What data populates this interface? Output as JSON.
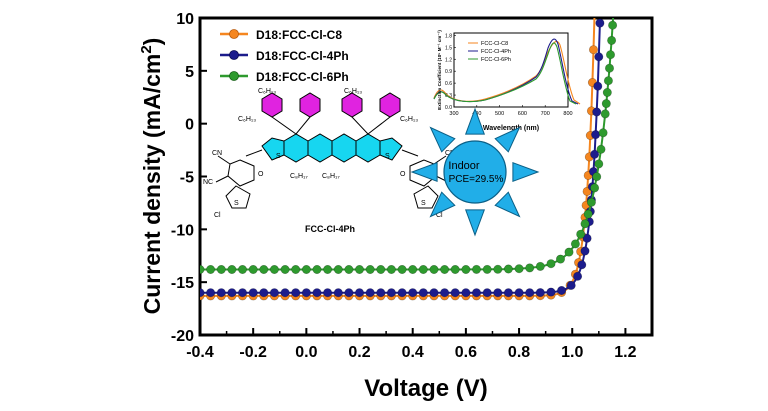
{
  "chart_data": {
    "type": "line",
    "xlabel": "Voltage (V)",
    "ylabel": "Current density (mA/cm",
    "ylabel_sup": "2",
    "ylabel_close": ")",
    "xlim": [
      -0.4,
      1.3
    ],
    "ylim": [
      -20,
      10
    ],
    "xticks": [
      "-0.4",
      "-0.2",
      "0.0",
      "0.2",
      "0.4",
      "0.6",
      "0.8",
      "1.0",
      "1.2"
    ],
    "yticks": [
      "-20",
      "-15",
      "-10",
      "-5",
      "0",
      "5",
      "10"
    ],
    "legend_position": "top-left",
    "series": [
      {
        "name": "D18:FCC-Cl-C8",
        "color": "#f5861f",
        "jsc": -16.3,
        "voc": 1.07,
        "n_vt": 0.028
      },
      {
        "name": "D18:FCC-Cl-4Ph",
        "color": "#1c1c8c",
        "jsc": -16.0,
        "voc": 1.09,
        "n_vt": 0.03
      },
      {
        "name": "D18:FCC-Cl-6Ph",
        "color": "#2e9a2e",
        "jsc": -13.8,
        "voc": 1.12,
        "n_vt": 0.062
      }
    ]
  },
  "inset": {
    "ylabel": "Extinction Coefficient (10⁵ M⁻¹ cm⁻¹)",
    "xlabel": "Wavelength (nm)",
    "xticks": [
      "300",
      "400",
      "500",
      "600",
      "700",
      "800"
    ],
    "yticks": [
      "0.0",
      "0.3",
      "0.6",
      "0.9",
      "1.2",
      "1.5",
      "1.8"
    ],
    "legend": [
      "FCC-Cl-C8",
      "FCC-Cl-4Ph",
      "FCC-Cl-6Ph"
    ]
  },
  "molecule": {
    "name": "FCC-Cl-4Ph",
    "sub_c6h13": "C₆H₁₃",
    "sub_c8h17": "C₈H₁₇",
    "sub_c8h17b": "C₈H₁₇",
    "atom_s": "S",
    "atom_cl": "Cl",
    "atom_cn": "CN",
    "atom_nc": "NC",
    "atom_o": "O"
  },
  "badge": {
    "line1": "Indoor",
    "line2": "PCE=29.5%"
  }
}
